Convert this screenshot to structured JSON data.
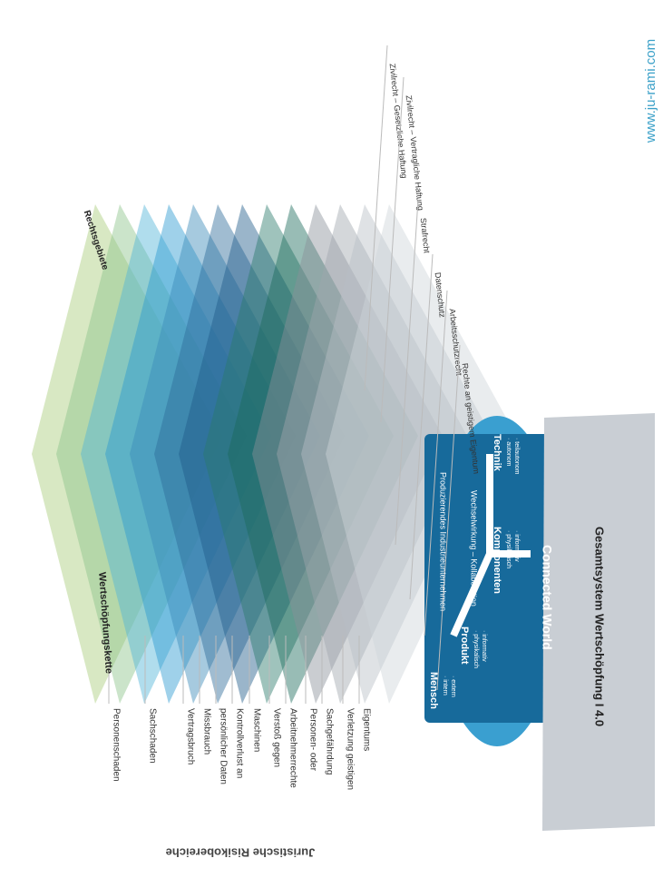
{
  "watermark": "www.ju-rami.com",
  "risk_axis_title": "Juristische Risikobereiche",
  "risk_areas": [
    [
      "Personenschaden"
    ],
    [
      "Sachschaden"
    ],
    [
      "Vertragsbruch"
    ],
    [
      "Missbrauch",
      "persönlicher Daten"
    ],
    [
      "Kontrollverlust an",
      "Maschinen"
    ],
    [
      "Verstoß gegen",
      "Arbeitnehmerrechte"
    ],
    [
      "Personen- oder",
      "Sachgefährdung"
    ],
    [
      "Verletzung geistigen",
      "Eigentums"
    ]
  ],
  "legal_axis_title": "Rechtsgebiete",
  "value_chain_title": "Wertschöpfungskette",
  "legal_areas": [
    "Zivilrecht – Gesetzliche Haftung",
    "Zivilrecht – Vertragliche Haftung",
    "Strafrecht",
    "Datenschutz",
    "Arbeitsschutzrecht",
    "Rechte an geistigem Eigentum"
  ],
  "connected_world": {
    "company": "Produzierendes Industrieunternehmen",
    "interaction": "Wechselwirkung – Kollaboration",
    "title": "Connected World",
    "elements": [
      {
        "name": "Mensch",
        "bullets": [
          "· intern",
          "· extern"
        ]
      },
      {
        "name": "Produkt",
        "bullets": [
          "· physikalisch",
          "· informativ"
        ]
      },
      {
        "name": "Komponenten",
        "bullets": [
          "· physikalisch",
          "· informativ"
        ]
      },
      {
        "name": "Technik",
        "bullets": [
          "· autonom",
          "· teilautonom"
        ]
      }
    ]
  },
  "footer_bar": "Gesamtsystem Wertschöpfung I 4.0"
}
